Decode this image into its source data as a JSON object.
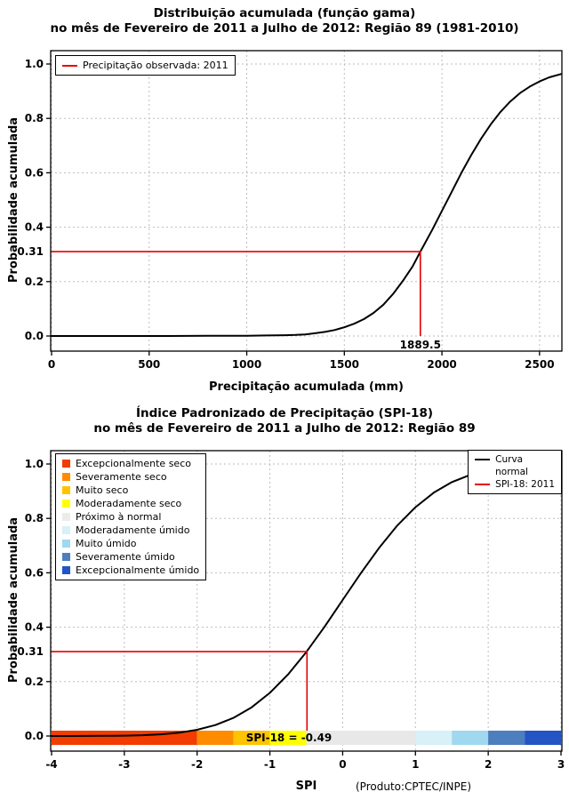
{
  "chart_data": [
    {
      "type": "line",
      "title": "Distribuição acumulada (função gama)",
      "subtitle": "no mês de Fevereiro de 2011 a Julho de 2012: Região 89 (1981-2010)",
      "xlabel": "Precipitação acumulada (mm)",
      "ylabel": "Probabilidade acumulada",
      "xlim": [
        0,
        2610
      ],
      "ylim": [
        0,
        1
      ],
      "grid": true,
      "xticks": {
        "values": [
          0,
          500,
          1000,
          1500,
          2000,
          2500
        ],
        "labels": [
          "0",
          "500",
          "1000",
          "1500",
          "2000",
          "2500"
        ]
      },
      "yticks": {
        "values": [
          0,
          0.2,
          0.4,
          0.6,
          0.8,
          1
        ],
        "labels": [
          "0.0",
          "0.2",
          "0.4",
          "0.6",
          "0.8",
          "1.0"
        ]
      },
      "legend": {
        "position": "top-left",
        "items": [
          {
            "label": "Precipitação observada: 2011",
            "swatch": "line",
            "color": "#e60000"
          }
        ]
      },
      "series": [
        {
          "name": "gamma-cdf-curve",
          "color": "#000000",
          "x": [
            0,
            200,
            400,
            600,
            800,
            1000,
            1100,
            1200,
            1250,
            1300,
            1350,
            1400,
            1450,
            1500,
            1550,
            1600,
            1650,
            1700,
            1750,
            1800,
            1850,
            1889.5,
            1950,
            2000,
            2050,
            2100,
            2150,
            2200,
            2250,
            2300,
            2350,
            2400,
            2450,
            2500,
            2550,
            2610
          ],
          "y": [
            0,
            0,
            0,
            0,
            0.001,
            0.001,
            0.002,
            0.003,
            0.004,
            0.006,
            0.01,
            0.015,
            0.022,
            0.032,
            0.045,
            0.062,
            0.085,
            0.115,
            0.155,
            0.203,
            0.256,
            0.31,
            0.39,
            0.46,
            0.53,
            0.6,
            0.665,
            0.725,
            0.778,
            0.824,
            0.862,
            0.893,
            0.917,
            0.936,
            0.951,
            0.963
          ]
        }
      ],
      "annotation": {
        "x": 1889.5,
        "y": 0.31,
        "x_label": "1889.5",
        "y_label": "0.31",
        "color": "#e60000"
      }
    },
    {
      "type": "line",
      "title": "Índice Padronizado de Precipitação (SPI-18)",
      "subtitle": "no mês de Fevereiro de 2011 a Julho de 2012: Região 89",
      "xlabel": "SPI",
      "ylabel": "Probabilidade acumulada",
      "credit": "(Produto:CPTEC/INPE)",
      "xlim": [
        -4,
        3
      ],
      "ylim": [
        0,
        1
      ],
      "grid": true,
      "xticks": {
        "values": [
          -4,
          -3,
          -2,
          -1,
          0,
          1,
          2,
          3
        ],
        "labels": [
          "-4",
          "-3",
          "-2",
          "-1",
          "0",
          "1",
          "2",
          "3"
        ]
      },
      "yticks": {
        "values": [
          0,
          0.2,
          0.4,
          0.6,
          0.8,
          1
        ],
        "labels": [
          "0.0",
          "0.2",
          "0.4",
          "0.6",
          "0.8",
          "1.0"
        ]
      },
      "legend_classes": {
        "position": "top-left",
        "items": [
          {
            "label": "Excepcionalmente seco",
            "color": "#f23c00"
          },
          {
            "label": "Severamente seco",
            "color": "#ff8c00"
          },
          {
            "label": "Muito seco",
            "color": "#ffc400"
          },
          {
            "label": "Moderadamente seco",
            "color": "#ffff00"
          },
          {
            "label": "Próximo à normal",
            "color": "#ececec"
          },
          {
            "label": "Moderadamente úmido",
            "color": "#d8f0f8"
          },
          {
            "label": "Muito úmido",
            "color": "#9fd8ef"
          },
          {
            "label": "Severamente úmido",
            "color": "#4d7ebe"
          },
          {
            "label": "Excepcionalmente úmido",
            "color": "#2455c4"
          }
        ]
      },
      "legend_series": {
        "position": "top-right",
        "items": [
          {
            "label": "Curva\nnormal",
            "swatch": "line",
            "color": "#000000"
          },
          {
            "label": "SPI-18: 2011",
            "swatch": "line",
            "color": "#e60000"
          }
        ]
      },
      "series": [
        {
          "name": "normal-cdf-curve",
          "color": "#000000",
          "x": [
            -4,
            -3.75,
            -3.5,
            -3.25,
            -3,
            -2.75,
            -2.5,
            -2.25,
            -2,
            -1.75,
            -1.5,
            -1.25,
            -1,
            -0.75,
            -0.5,
            -0.25,
            0,
            0.25,
            0.5,
            0.75,
            1,
            1.25,
            1.5,
            1.75,
            2,
            2.25,
            2.5,
            2.75,
            3
          ],
          "y": [
            0,
            0.0001,
            0.0002,
            0.0006,
            0.0013,
            0.003,
            0.0062,
            0.0122,
            0.0228,
            0.0401,
            0.0668,
            0.1056,
            0.1587,
            0.2266,
            0.3085,
            0.4013,
            0.5,
            0.5987,
            0.6915,
            0.7734,
            0.8413,
            0.8944,
            0.9332,
            0.9599,
            0.9772,
            0.9878,
            0.9938,
            0.997,
            0.9987
          ]
        }
      ],
      "annotation": {
        "x": -0.49,
        "y": 0.31,
        "label": "SPI-18 = -0.49",
        "y_label": "0.31",
        "color": "#e60000"
      },
      "colorbar": {
        "segments": [
          {
            "from": -4,
            "to": -2,
            "color": "#f23c00",
            "label": "Excepcionalmente seco"
          },
          {
            "from": -2,
            "to": -1.5,
            "color": "#ff8c00",
            "label": "Severamente seco"
          },
          {
            "from": -1.5,
            "to": -1,
            "color": "#ffc400",
            "label": "Muito seco"
          },
          {
            "from": -1,
            "to": -0.5,
            "color": "#ffff00",
            "label": "Moderadamente seco"
          },
          {
            "from": -0.5,
            "to": 1,
            "color": "#e8e8e8",
            "label": "Próximo à normal"
          },
          {
            "from": 1,
            "to": 1.5,
            "color": "#d8f0f8",
            "label": "Moderadamente úmido"
          },
          {
            "from": 1.5,
            "to": 2,
            "color": "#9fd8ef",
            "label": "Muito úmido"
          },
          {
            "from": 2,
            "to": 2.5,
            "color": "#4d7ebe",
            "label": "Severamente úmido"
          },
          {
            "from": 2.5,
            "to": 3,
            "color": "#2455c4",
            "label": "Excepcionalmente úmido"
          }
        ]
      }
    }
  ]
}
